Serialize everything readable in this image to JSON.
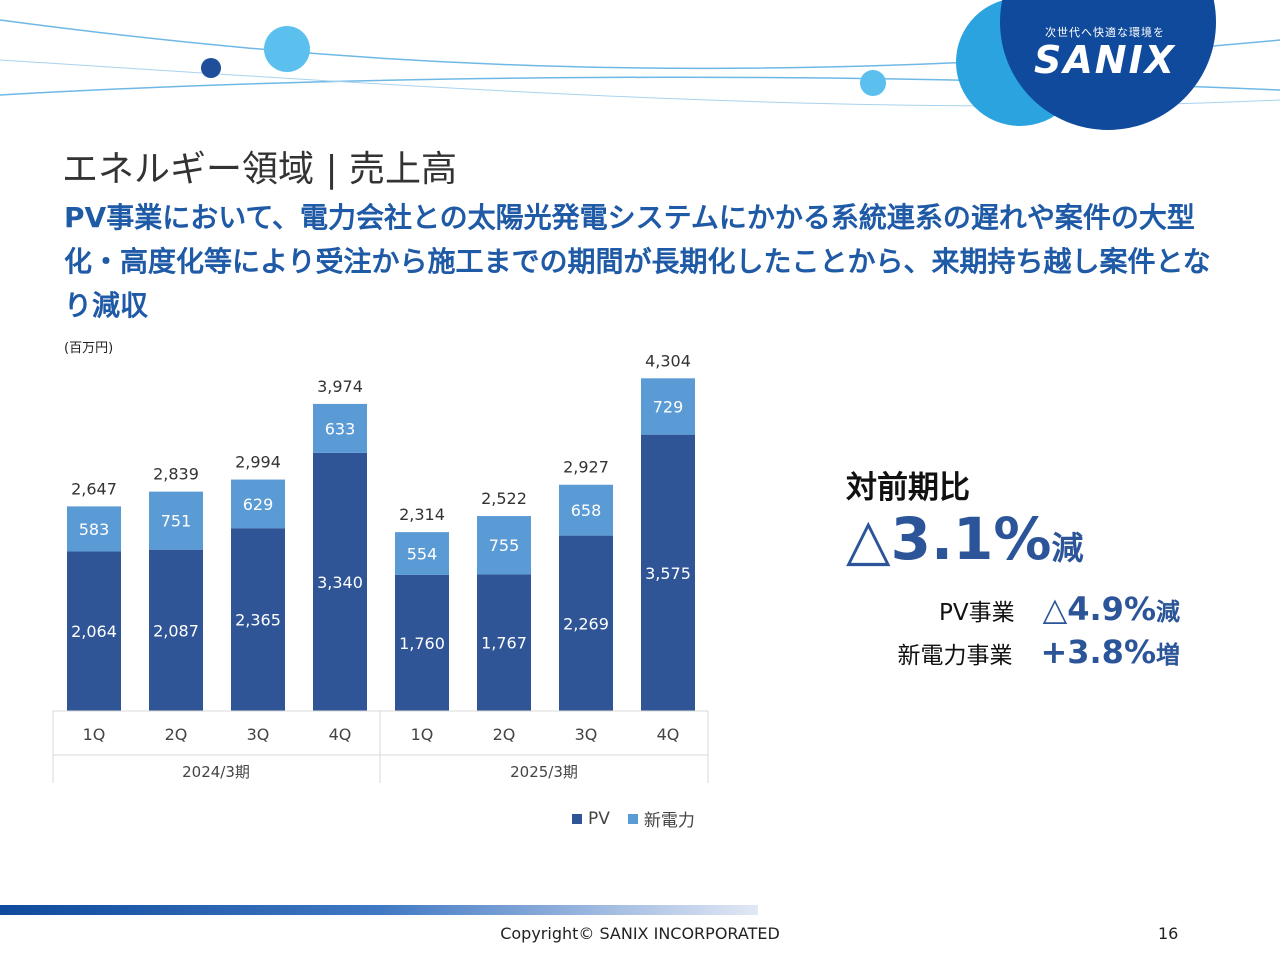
{
  "header": {
    "logo_tagline": "次世代へ快適な環境を",
    "logo_text": "SANIX",
    "title": "エネルギー領域 | 売上高",
    "headline": "PV事業において、電力会社との太陽光発電システムにかかる系統連系の遅れや案件の大型化・高度化等により受注から施工までの期間が長期化したことから、来期持ち越し案件となり減収"
  },
  "chart_data": {
    "type": "bar",
    "stacked": true,
    "unit_label": "(百万円)",
    "groups": [
      "2024/3期",
      "2025/3期"
    ],
    "categories": [
      "1Q",
      "2Q",
      "3Q",
      "4Q",
      "1Q",
      "2Q",
      "3Q",
      "4Q"
    ],
    "series": [
      {
        "name": "PV",
        "values": [
          2064,
          2087,
          2365,
          3340,
          1760,
          1767,
          2269,
          3575
        ]
      },
      {
        "name": "新電力",
        "values": [
          583,
          751,
          629,
          633,
          554,
          755,
          658,
          729
        ]
      }
    ],
    "totals": [
      2647,
      2839,
      2994,
      3974,
      2314,
      2522,
      2927,
      4304
    ],
    "ylim": [
      0,
      4500
    ],
    "grid": false,
    "legend_position": "bottom",
    "colors": {
      "PV": "#2f5597",
      "新電力": "#5b9bd5"
    }
  },
  "yoy": {
    "title": "対前期比",
    "total_value": "△3.1%",
    "total_suffix": "減",
    "rows": [
      {
        "name": "PV事業",
        "value": "△4.9%",
        "suffix": "減"
      },
      {
        "name": "新電力事業",
        "value": "+3.8%",
        "suffix": "増"
      }
    ]
  },
  "footer": {
    "copyright": "Copyright©  SANIX INCORPORATED",
    "page_number": "16"
  }
}
